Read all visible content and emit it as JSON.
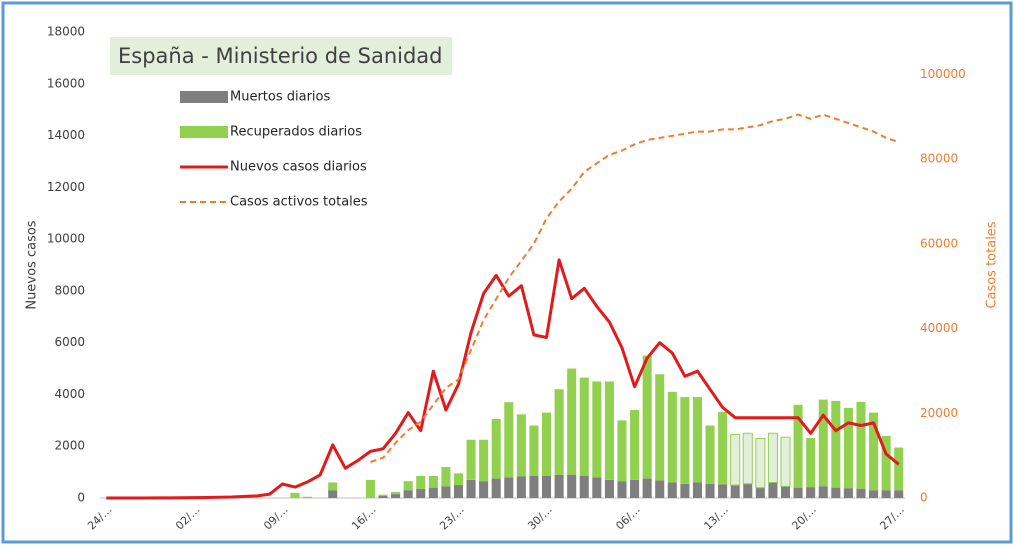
{
  "chart_data": {
    "type": "combo",
    "title": "España - Ministerio de Sanidad",
    "y_label": "Nuevos casos",
    "y2_label": "Casos totales",
    "categories": [
      "24/…",
      null,
      null,
      null,
      null,
      null,
      null,
      "02/…",
      null,
      null,
      null,
      null,
      null,
      null,
      "09/…",
      null,
      null,
      null,
      null,
      null,
      null,
      "16/…",
      null,
      null,
      null,
      null,
      null,
      null,
      "23/…",
      null,
      null,
      null,
      null,
      null,
      null,
      "30/…",
      null,
      null,
      null,
      null,
      null,
      null,
      "06/…",
      null,
      null,
      null,
      null,
      null,
      null,
      "13/…",
      null,
      null,
      null,
      null,
      null,
      null,
      "20/…",
      null,
      null,
      null,
      null,
      null,
      null,
      "27/…"
    ],
    "ylim": [
      0,
      18000
    ],
    "yticks": [
      0,
      2000,
      4000,
      6000,
      8000,
      10000,
      12000,
      14000,
      16000,
      18000
    ],
    "y2lim": [
      0,
      110000
    ],
    "y2ticks": [
      0,
      20000,
      40000,
      60000,
      80000,
      100000
    ],
    "grid": false,
    "legend": "upper left",
    "series": [
      {
        "name": "Muertos diarios",
        "kind": "bar",
        "color": "#7f7f7f",
        "values": [
          0,
          0,
          0,
          0,
          0,
          0,
          0,
          0,
          0,
          0,
          0,
          0,
          0,
          0,
          0,
          0,
          0,
          0,
          300,
          0,
          0,
          0,
          80,
          150,
          300,
          350,
          400,
          450,
          500,
          700,
          650,
          750,
          800,
          830,
          850,
          850,
          900,
          900,
          850,
          800,
          700,
          650,
          700,
          750,
          680,
          600,
          550,
          600,
          550,
          520,
          500,
          550,
          400,
          600,
          450,
          400,
          420,
          450,
          400,
          380,
          360,
          300,
          300,
          300
        ]
      },
      {
        "name": "Recuperados diarios",
        "kind": "bar",
        "color": "#92d050",
        "colors": [
          "#92d050",
          "#92d050",
          "#92d050",
          "#92d050",
          "#92d050",
          "#92d050",
          "#92d050",
          "#92d050",
          "#92d050",
          "#92d050",
          "#92d050",
          "#92d050",
          "#92d050",
          "#92d050",
          "#92d050",
          "#92d050",
          "#92d050",
          "#92d050",
          "#92d050",
          "#92d050",
          "#92d050",
          "#92d050",
          "#92d050",
          "#92d050",
          "#92d050",
          "#92d050",
          "#92d050",
          "#92d050",
          "#92d050",
          "#92d050",
          "#92d050",
          "#92d050",
          "#92d050",
          "#92d050",
          "#92d050",
          "#92d050",
          "#92d050",
          "#92d050",
          "#92d050",
          "#92d050",
          "#92d050",
          "#92d050",
          "#92d050",
          "#92d050",
          "#92d050",
          "#92d050",
          "#92d050",
          "#92d050",
          "#92d050",
          "#92d050",
          "#e2f0d9",
          "#e2f0d9",
          "#e2f0d9",
          "#e2f0d9",
          "#e2f0d9",
          "#92d050",
          "#92d050",
          "#92d050",
          "#92d050",
          "#92d050",
          "#92d050",
          "#92d050",
          "#92d050",
          "#92d050"
        ],
        "values": [
          0,
          0,
          0,
          0,
          0,
          0,
          0,
          0,
          0,
          0,
          0,
          0,
          0,
          0,
          0,
          200,
          50,
          0,
          300,
          0,
          0,
          700,
          50,
          80,
          350,
          500,
          450,
          750,
          450,
          1550,
          1600,
          2300,
          2900,
          2400,
          1950,
          2450,
          3300,
          4100,
          3800,
          3700,
          3800,
          2350,
          2700,
          4750,
          4100,
          3500,
          3350,
          3300,
          2250,
          2800,
          1950,
          1950,
          1900,
          1900,
          1900,
          3200,
          1900,
          3350,
          3350,
          3100,
          3350,
          3000,
          2100,
          1650
        ]
      },
      {
        "name": "Nuevos casos diarios",
        "kind": "line",
        "color": "#e31a1c",
        "values": [
          0,
          0,
          0,
          0,
          2,
          5,
          10,
          15,
          20,
          30,
          40,
          60,
          80,
          150,
          540,
          420,
          620,
          890,
          2050,
          1150,
          1450,
          1800,
          1900,
          2500,
          3300,
          2600,
          4900,
          3400,
          4400,
          6400,
          7900,
          8600,
          7800,
          8200,
          6300,
          6200,
          9200,
          7700,
          8100,
          7400,
          6800,
          5800,
          4300,
          5400,
          6000,
          5600,
          4700,
          4900,
          4200,
          3500,
          3100,
          3100,
          3100,
          3100,
          3100,
          3100,
          2500,
          3200,
          2600,
          2900,
          2800,
          2900,
          1700,
          1300
        ]
      },
      {
        "name": "Casos activos totales",
        "kind": "dashed",
        "axis": "y2",
        "color": "#ed7d31",
        "values": [
          null,
          null,
          null,
          null,
          null,
          null,
          null,
          null,
          null,
          null,
          null,
          null,
          null,
          null,
          null,
          null,
          null,
          null,
          null,
          null,
          null,
          8500,
          9500,
          13000,
          16000,
          18000,
          22000,
          26000,
          28000,
          35000,
          42000,
          47000,
          52000,
          56000,
          60000,
          66000,
          70000,
          73000,
          77000,
          79000,
          81000,
          82000,
          83500,
          84500,
          85000,
          85500,
          86000,
          86500,
          86500,
          87000,
          87000,
          87500,
          88000,
          89000,
          89500,
          90500,
          89500,
          90500,
          89500,
          88500,
          87500,
          86500,
          85000,
          84000
        ]
      }
    ]
  }
}
